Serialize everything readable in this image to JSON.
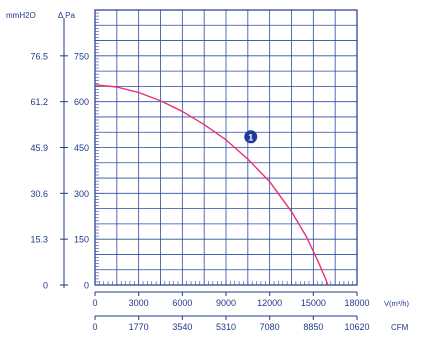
{
  "colors": {
    "background": "#ffffff",
    "axis": "#1f3a8a",
    "grid": "#2c4aa6",
    "text": "#1f3a8a",
    "curve": "#e8336f",
    "marker_fill": "#1f3aa0",
    "marker_text": "#ffffff"
  },
  "chart_data": {
    "type": "line",
    "title": "",
    "left_axes": [
      {
        "unit_label": "mmH2O",
        "ticks": [
          "0",
          "15.3",
          "30.6",
          "45.9",
          "61.2",
          "76.5"
        ],
        "range": [
          0,
          91.8
        ]
      },
      {
        "unit_label": "Δ Pa",
        "ticks": [
          "0",
          "150",
          "300",
          "450",
          "600",
          "750"
        ],
        "range": [
          0,
          900
        ]
      }
    ],
    "bottom_axes": [
      {
        "unit_label": "V(m³/h)",
        "ticks": [
          "0",
          "3000",
          "6000",
          "9000",
          "12000",
          "15000",
          "18000"
        ],
        "range": [
          0,
          18000
        ]
      },
      {
        "unit_label": "CFM",
        "ticks": [
          "0",
          "1770",
          "3540",
          "5310",
          "7080",
          "8850",
          "10620"
        ],
        "range": [
          0,
          10620
        ]
      }
    ],
    "grid": true,
    "series": [
      {
        "marker_label": "1",
        "x": [
          0,
          1500,
          3000,
          4500,
          6000,
          7500,
          9000,
          10500,
          12000,
          13500,
          14500,
          15300,
          15800,
          16000
        ],
        "y": [
          655,
          648,
          630,
          603,
          568,
          525,
          475,
          412,
          338,
          240,
          160,
          80,
          25,
          0
        ]
      }
    ],
    "marker_position": {
      "x": 10700,
      "y": 485
    }
  }
}
